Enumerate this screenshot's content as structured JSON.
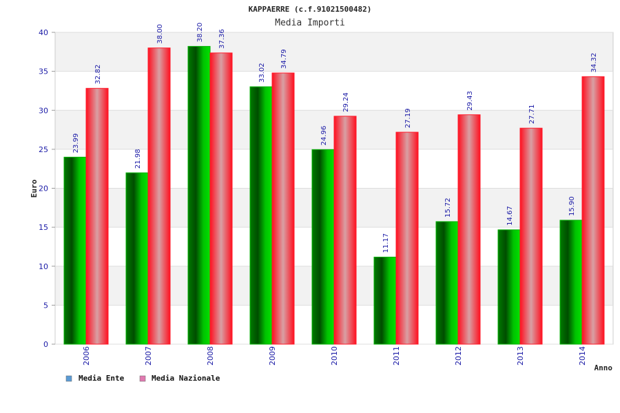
{
  "chart_data": {
    "type": "bar",
    "title": "KAPPAERRE (c.f.91021500482)",
    "subtitle": "Media Importi",
    "xlabel": "Anno",
    "ylabel": "Euro",
    "ylim": [
      0,
      40
    ],
    "yticks": [
      "0",
      "5",
      "10",
      "15",
      "20",
      "25",
      "30",
      "35",
      "40"
    ],
    "grid": true,
    "legend_position": "bottom-left",
    "categories": [
      "2006",
      "2007",
      "2008",
      "2009",
      "2010",
      "2011",
      "2012",
      "2013",
      "2014"
    ],
    "series": [
      {
        "name": "Media Ente",
        "values": [
          23.99,
          21.98,
          38.2,
          33.02,
          24.96,
          11.17,
          15.72,
          14.67,
          15.9
        ],
        "labels": [
          "23.99",
          "21.98",
          "38.20",
          "33.02",
          "24.96",
          "11.17",
          "15.72",
          "14.67",
          "15.90"
        ],
        "color": "#00b000",
        "legend_color": "#5b9bd5"
      },
      {
        "name": "Media Nazionale",
        "values": [
          32.82,
          38.0,
          37.36,
          34.79,
          29.24,
          27.19,
          29.43,
          27.71,
          34.32
        ],
        "labels": [
          "32.82",
          "38.00",
          "37.36",
          "34.79",
          "29.24",
          "27.19",
          "29.43",
          "27.71",
          "34.32"
        ],
        "color": "#ff1a2a",
        "legend_color": "#e07ab0"
      }
    ]
  }
}
